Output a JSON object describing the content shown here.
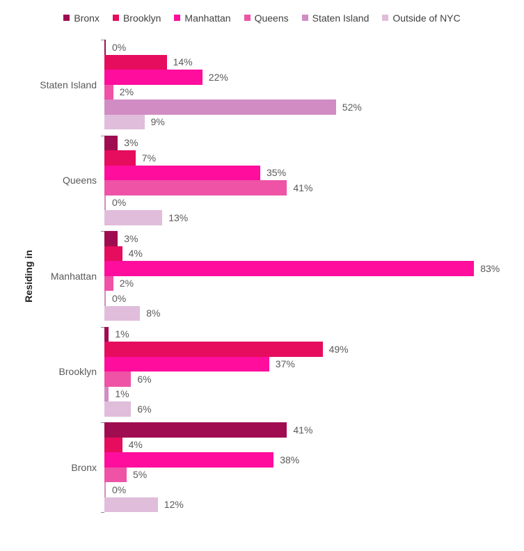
{
  "chart_data": {
    "type": "bar",
    "orientation": "horizontal",
    "title": "",
    "xlabel": "",
    "ylabel": "Residing in",
    "value_suffix": "%",
    "xlim": [
      0,
      100
    ],
    "grid": false,
    "legend_position": "top",
    "categories": [
      "Staten Island",
      "Queens",
      "Manhattan",
      "Brooklyn",
      "Bronx"
    ],
    "series": [
      {
        "name": "Bronx",
        "color": "#A00C50",
        "values": [
          0,
          3,
          3,
          1,
          41
        ]
      },
      {
        "name": "Brooklyn",
        "color": "#E60C5E",
        "values": [
          14,
          7,
          4,
          49,
          4
        ]
      },
      {
        "name": "Manhattan",
        "color": "#FF0D9D",
        "values": [
          22,
          35,
          83,
          37,
          38
        ]
      },
      {
        "name": "Queens",
        "color": "#EE53A6",
        "values": [
          2,
          41,
          2,
          6,
          5
        ]
      },
      {
        "name": "Staten Island",
        "color": "#D18CC4",
        "values": [
          52,
          0,
          0,
          1,
          0
        ]
      },
      {
        "name": "Outside of NYC",
        "color": "#E0BDDB",
        "values": [
          9,
          13,
          8,
          6,
          12
        ]
      }
    ]
  }
}
